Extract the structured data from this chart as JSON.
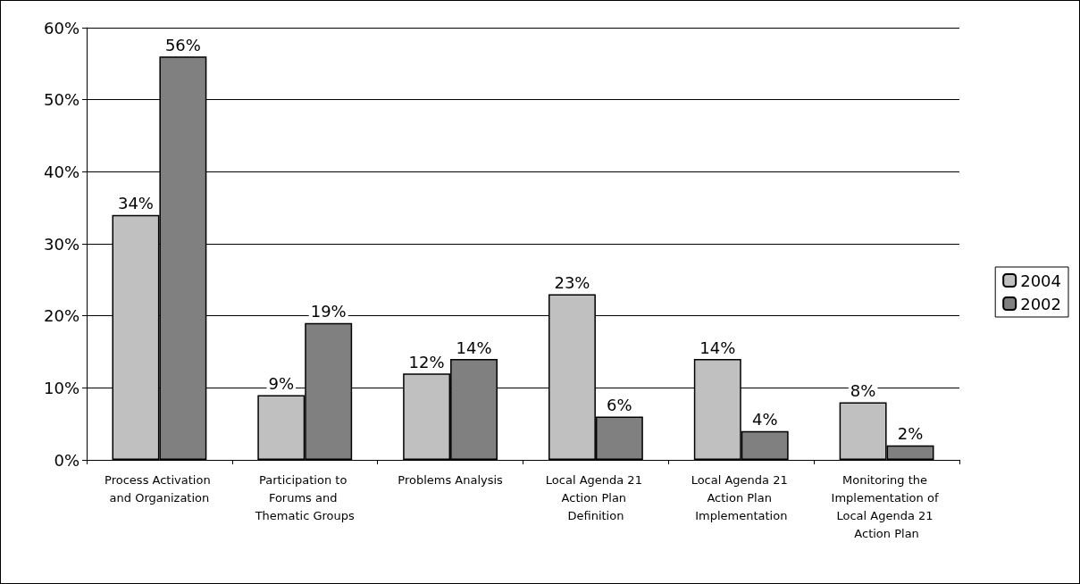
{
  "chart_data": {
    "type": "bar",
    "categories": [
      "Process Activation and Organization",
      "Participation to Forums and Thematic Groups",
      "Problems Analysis",
      "Local Agenda 21 Action Plan Definition",
      "Local Agenda 21 Action Plan Implementation",
      "Monitoring the Implementation of Local Agenda 21 Action Plan"
    ],
    "series": [
      {
        "name": "2004",
        "color": "#c0c0c0",
        "values": [
          34,
          9,
          12,
          23,
          14,
          8
        ],
        "value_labels": [
          "34%",
          "9%",
          "12%",
          "23%",
          "14%",
          "8%"
        ]
      },
      {
        "name": "2002",
        "color": "#808080",
        "values": [
          56,
          19,
          14,
          6,
          4,
          2
        ],
        "value_labels": [
          "56%",
          "19%",
          "14%",
          "6%",
          "4%",
          "2%"
        ]
      }
    ],
    "ylim": [
      0,
      60
    ],
    "yticks": [
      {
        "value": 0,
        "label": "0%"
      },
      {
        "value": 10,
        "label": "10%"
      },
      {
        "value": 20,
        "label": "20%"
      },
      {
        "value": 30,
        "label": "30%"
      },
      {
        "value": 40,
        "label": "40%"
      },
      {
        "value": 50,
        "label": "50%"
      },
      {
        "value": 60,
        "label": "60%"
      }
    ],
    "grid": "y",
    "legend": "right"
  }
}
